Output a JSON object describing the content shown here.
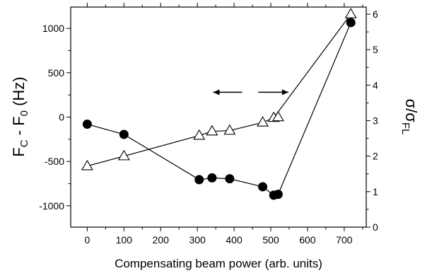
{
  "chart_data": {
    "type": "line",
    "x_label": "Compensating beam power (arb. units)",
    "x_ticks": [
      0,
      100,
      200,
      300,
      400,
      500,
      600,
      700
    ],
    "xlim": [
      -45,
      760
    ],
    "y_left": {
      "label_main": "F",
      "label_sub1": "C",
      "label_mid": " - F",
      "label_sub2": "0",
      "label_unit": " (Hz)",
      "ticks": [
        -1000,
        -500,
        0,
        500,
        1000
      ],
      "ylim": [
        -1240,
        1240
      ]
    },
    "y_right": {
      "label_main": "σ/σ",
      "label_sub": "FL",
      "ticks": [
        0,
        1,
        2,
        3,
        4,
        5,
        6
      ],
      "ylim": [
        0,
        6.2
      ]
    },
    "series": [
      {
        "marker": "circle-filled",
        "axis": "left",
        "points": [
          [
            0,
            -80
          ],
          [
            100,
            -195
          ],
          [
            305,
            -705
          ],
          [
            340,
            -685
          ],
          [
            388,
            -695
          ],
          [
            478,
            -785
          ],
          [
            508,
            -880
          ],
          [
            520,
            -870
          ],
          [
            718,
            1065
          ]
        ],
        "segments": [
          [
            0,
            1
          ],
          [
            1,
            2
          ],
          [
            2,
            3
          ],
          [
            3,
            4
          ],
          [
            4,
            5
          ],
          [
            5,
            6
          ],
          [
            7,
            8
          ]
        ]
      },
      {
        "marker": "triangle-open",
        "axis": "right",
        "points": [
          [
            0,
            1.72
          ],
          [
            100,
            2.0
          ],
          [
            305,
            2.58
          ],
          [
            340,
            2.7
          ],
          [
            388,
            2.72
          ],
          [
            478,
            2.95
          ],
          [
            508,
            3.08
          ],
          [
            520,
            3.1
          ],
          [
            718,
            6.0
          ]
        ],
        "segments": [
          [
            0,
            1
          ],
          [
            1,
            2
          ],
          [
            2,
            3
          ],
          [
            3,
            4
          ],
          [
            4,
            5
          ],
          [
            5,
            6
          ],
          [
            6,
            8
          ]
        ]
      }
    ],
    "annotations": [
      {
        "type": "arrow",
        "direction": "left",
        "from": [
          422,
          0.6
        ],
        "to": [
          343,
          0.6
        ],
        "meaning": "circles-left-axis"
      },
      {
        "type": "arrow",
        "direction": "right",
        "from": [
          466,
          0.6
        ],
        "to": [
          548,
          0.6
        ],
        "meaning": "triangles-right-axis"
      }
    ]
  }
}
